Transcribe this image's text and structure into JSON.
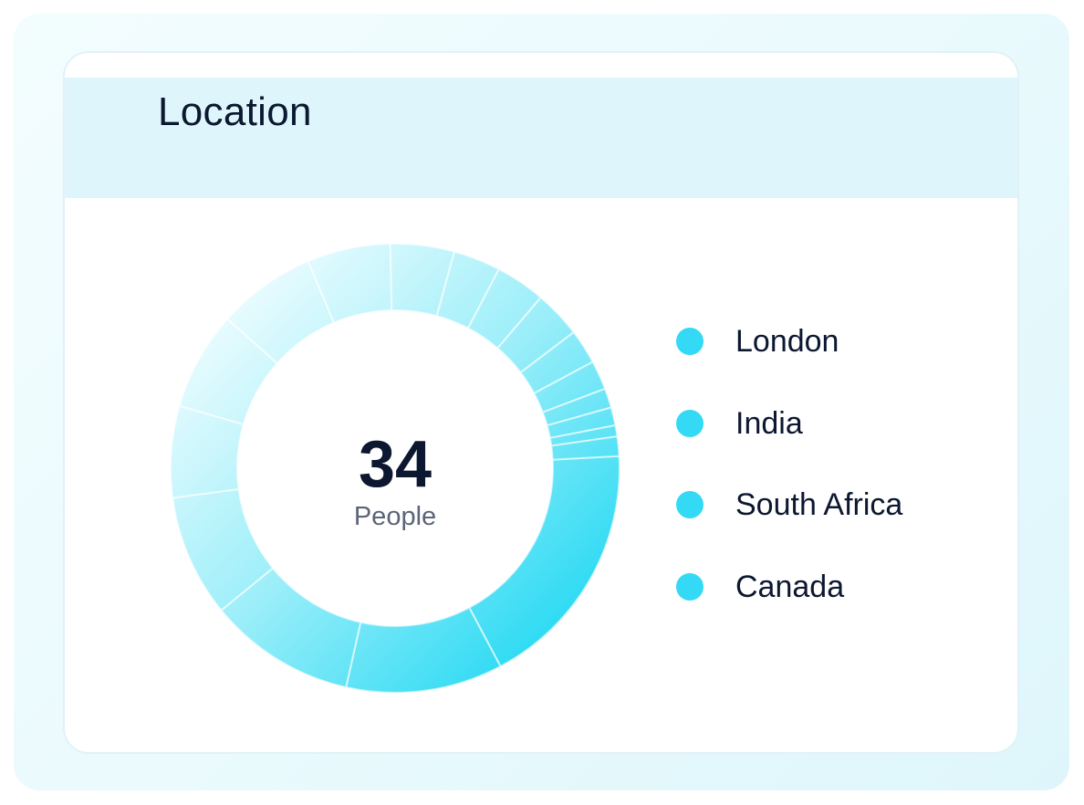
{
  "card": {
    "title": "Location"
  },
  "center": {
    "value": "34",
    "label": "People"
  },
  "legend": [
    {
      "label": "London",
      "color": "#34daf5"
    },
    {
      "label": "India",
      "color": "#34daf5"
    },
    {
      "label": "South Africa",
      "color": "#34daf5"
    },
    {
      "label": "Canada",
      "color": "#34daf5"
    }
  ],
  "colors": {
    "gradient_light": "#e6fbfe",
    "gradient_dark": "#22d8f3",
    "separator": "#ffffff",
    "title": "#0c1730",
    "header_bg": "#def6fb"
  },
  "chart_data": {
    "type": "pie",
    "variant": "donut",
    "total_label": "34 People",
    "unit": "percent of total (approx.)",
    "values": [
      18.1,
      11.3,
      10.6,
      8.8,
      6.6,
      7.1,
      7.1,
      6.0,
      4.6,
      3.4,
      3.6,
      3.4,
      2.5,
      2.1,
      1.4,
      1.3,
      0.8,
      1.4
    ],
    "start_angle_deg": -3.1,
    "direction": "clockwise",
    "legend_placement": "right"
  }
}
